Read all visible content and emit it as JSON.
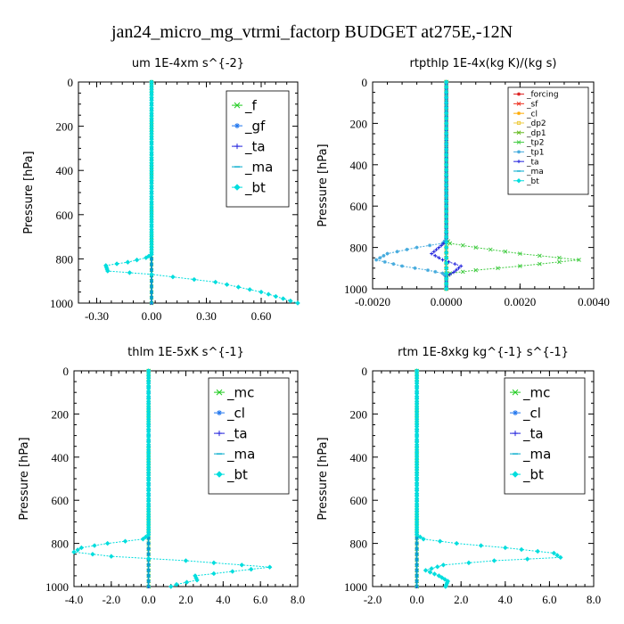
{
  "figure": {
    "title": "jan24_micro_mg_vtrmi_factorp  BUDGET at275E,-12N"
  },
  "chart_data": [
    {
      "type": "line",
      "title": "um   1E-4xm s^{-2}",
      "ylabel": "Pressure [hPa]",
      "xlim": [
        -0.4,
        0.8
      ],
      "ylim": [
        1000,
        0
      ],
      "xticks": [
        -0.3,
        0.0,
        0.3,
        0.6
      ],
      "xtick_labels": [
        "-0.30",
        "0.00",
        "0.30",
        "0.60"
      ],
      "yticks": [
        0,
        200,
        400,
        600,
        800,
        1000
      ],
      "ytick_labels": [
        "0",
        "200",
        "400",
        "600",
        "800",
        "1000"
      ],
      "legend": "top-right",
      "series": [
        {
          "name": "_f",
          "color": "#22cc22",
          "marker": "x",
          "x": [
            0,
            0,
            0,
            0,
            0,
            0,
            0,
            0,
            0,
            0,
            0
          ],
          "y": [
            0,
            100,
            200,
            300,
            400,
            500,
            600,
            700,
            800,
            900,
            1000
          ]
        },
        {
          "name": "_gf",
          "color": "#2277ee",
          "marker": "star",
          "x": [
            0,
            0,
            0,
            0,
            0,
            0,
            0,
            0,
            0,
            0,
            0
          ],
          "y": [
            0,
            100,
            200,
            300,
            400,
            500,
            600,
            700,
            800,
            900,
            1000
          ]
        },
        {
          "name": "_ta",
          "color": "#2222dd",
          "marker": "plus",
          "x": [
            0,
            0,
            0,
            0,
            0,
            0,
            0,
            0,
            0,
            0,
            0
          ],
          "y": [
            0,
            100,
            200,
            300,
            400,
            500,
            600,
            700,
            800,
            900,
            1000
          ]
        },
        {
          "name": "_ma",
          "color": "#00aacc",
          "marker": "dash",
          "x": [
            0,
            0,
            0,
            0,
            0,
            0,
            0,
            0,
            0,
            0,
            0
          ],
          "y": [
            0,
            100,
            200,
            300,
            400,
            500,
            600,
            700,
            800,
            900,
            1000
          ]
        },
        {
          "name": "_bt",
          "color": "#00dddd",
          "marker": "diamond",
          "x": [
            0.0,
            0.0,
            0.0,
            0.0,
            0.0,
            0.0,
            0.0,
            -0.03,
            -0.13,
            -0.25,
            -0.24,
            0.0,
            0.35,
            0.6,
            0.8
          ],
          "y": [
            0,
            200,
            400,
            600,
            700,
            760,
            780,
            795,
            815,
            830,
            855,
            870,
            905,
            950,
            1000
          ]
        }
      ]
    },
    {
      "type": "line",
      "title": "rtpthlp   1E-4x(kg K)/(kg s)",
      "ylabel": "Pressure [hPa]",
      "xlim": [
        -0.002,
        0.004
      ],
      "ylim": [
        1000,
        0
      ],
      "xticks": [
        -0.002,
        0.0,
        0.002,
        0.004
      ],
      "xtick_labels": [
        "-0.0020",
        "0.0000",
        "0.0020",
        "0.0040"
      ],
      "yticks": [
        0,
        200,
        400,
        600,
        800,
        1000
      ],
      "ytick_labels": [
        "0",
        "200",
        "400",
        "600",
        "800",
        "1000"
      ],
      "legend": "top-right",
      "series": [
        {
          "name": "_forcing",
          "color": "#dd2222",
          "marker": "star",
          "x": [
            0,
            0,
            0,
            0,
            0,
            0,
            0,
            0,
            0,
            0,
            0
          ],
          "y": [
            0,
            100,
            200,
            300,
            400,
            500,
            600,
            700,
            800,
            900,
            1000
          ]
        },
        {
          "name": "_sf",
          "color": "#ee3322",
          "marker": "x",
          "x": [
            0,
            0,
            0,
            0,
            0,
            0,
            0,
            0,
            0,
            0,
            0
          ],
          "y": [
            0,
            100,
            200,
            300,
            400,
            500,
            600,
            700,
            800,
            900,
            1000
          ]
        },
        {
          "name": "_cl",
          "color": "#ffaa00",
          "marker": "star",
          "x": [
            0,
            0,
            0,
            0,
            0,
            0,
            0,
            0,
            0,
            0,
            0
          ],
          "y": [
            0,
            100,
            200,
            300,
            400,
            500,
            600,
            700,
            800,
            900,
            1000
          ]
        },
        {
          "name": "_dp2",
          "color": "#eecc44",
          "marker": "square",
          "x": [
            0,
            0,
            0,
            0,
            0,
            0,
            0,
            0,
            0,
            0,
            0
          ],
          "y": [
            0,
            100,
            200,
            300,
            400,
            500,
            600,
            700,
            800,
            900,
            1000
          ]
        },
        {
          "name": "_dp1",
          "color": "#66bb22",
          "marker": "x",
          "x": [
            0,
            0,
            0,
            0,
            0,
            0,
            0,
            0,
            0,
            0,
            0
          ],
          "y": [
            0,
            100,
            200,
            300,
            400,
            500,
            600,
            700,
            800,
            900,
            1000
          ]
        },
        {
          "name": "_tp2",
          "color": "#44cc44",
          "marker": "x",
          "x": [
            0.0,
            0.0,
            0.0,
            0.0001,
            0.0008,
            0.002,
            0.0036,
            0.002,
            0.0008,
            0.0001,
            0.0,
            0.0
          ],
          "y": [
            0,
            400,
            760,
            780,
            800,
            830,
            860,
            890,
            910,
            925,
            940,
            1000
          ]
        },
        {
          "name": "_tp1",
          "color": "#44aadd",
          "marker": "star",
          "x": [
            0.0,
            0.0,
            0.0,
            -0.0001,
            -0.0008,
            -0.0016,
            -0.0019,
            -0.0012,
            -0.0005,
            -0.0001,
            0.0,
            0.0
          ],
          "y": [
            0,
            400,
            760,
            780,
            800,
            830,
            860,
            890,
            910,
            925,
            940,
            1000
          ]
        },
        {
          "name": "_ta",
          "color": "#2222dd",
          "marker": "plus",
          "x": [
            0.0,
            0.0,
            0.0,
            -0.0002,
            -0.0004,
            -0.0001,
            0.0004,
            0.0002,
            0.0,
            0.0
          ],
          "y": [
            0,
            400,
            770,
            800,
            830,
            860,
            890,
            920,
            940,
            1000
          ]
        },
        {
          "name": "_ma",
          "color": "#00aacc",
          "marker": "dash",
          "x": [
            0,
            0,
            0,
            0,
            0,
            0,
            0,
            0,
            0,
            0,
            0
          ],
          "y": [
            0,
            100,
            200,
            300,
            400,
            500,
            600,
            700,
            800,
            900,
            1000
          ]
        },
        {
          "name": "_bt",
          "color": "#00dddd",
          "marker": "diamond",
          "x": [
            0,
            0,
            0,
            0,
            0,
            0,
            0,
            0,
            0,
            0,
            0
          ],
          "y": [
            0,
            100,
            200,
            300,
            400,
            500,
            600,
            700,
            800,
            900,
            1000
          ]
        }
      ]
    },
    {
      "type": "line",
      "title": "thlm   1E-5xK s^{-1}",
      "ylabel": "Pressure [hPa]",
      "xlim": [
        -4.0,
        8.0
      ],
      "ylim": [
        1000,
        0
      ],
      "xticks": [
        -4,
        -2,
        0,
        2,
        4,
        6,
        8
      ],
      "xtick_labels": [
        "-4.0",
        "-2.0",
        "0.0",
        "2.0",
        "4.0",
        "6.0",
        "8.0"
      ],
      "yticks": [
        0,
        200,
        400,
        600,
        800,
        1000
      ],
      "ytick_labels": [
        "0",
        "200",
        "400",
        "600",
        "800",
        "1000"
      ],
      "legend": "top-right",
      "series": [
        {
          "name": "_mc",
          "color": "#22cc22",
          "marker": "x",
          "x": [
            0,
            0,
            0,
            0,
            0,
            0,
            0,
            0,
            0,
            0,
            0
          ],
          "y": [
            0,
            100,
            200,
            300,
            400,
            500,
            600,
            700,
            800,
            900,
            1000
          ]
        },
        {
          "name": "_cl",
          "color": "#2277ee",
          "marker": "star",
          "x": [
            0,
            0,
            0,
            0,
            0,
            0,
            0,
            0,
            0,
            0,
            0
          ],
          "y": [
            0,
            100,
            200,
            300,
            400,
            500,
            600,
            700,
            800,
            900,
            1000
          ]
        },
        {
          "name": "_ta",
          "color": "#2222dd",
          "marker": "plus",
          "x": [
            0,
            0,
            0,
            0,
            0,
            0,
            0,
            0,
            0,
            0,
            0
          ],
          "y": [
            0,
            100,
            200,
            300,
            400,
            500,
            600,
            700,
            800,
            900,
            1000
          ]
        },
        {
          "name": "_ma",
          "color": "#00aacc",
          "marker": "dash",
          "x": [
            0,
            0,
            0,
            0,
            0,
            0,
            0,
            0,
            0,
            0,
            0
          ],
          "y": [
            0,
            100,
            200,
            300,
            400,
            500,
            600,
            700,
            800,
            900,
            1000
          ]
        },
        {
          "name": "_bt",
          "color": "#00dddd",
          "marker": "diamond",
          "x": [
            0.0,
            0.0,
            0.0,
            0.0,
            -0.3,
            -2.2,
            -3.6,
            -4.0,
            -2.0,
            2.0,
            6.5,
            4.5,
            2.5,
            2.6,
            1.5,
            1.2
          ],
          "y": [
            0,
            400,
            700,
            760,
            780,
            800,
            820,
            840,
            860,
            880,
            910,
            930,
            950,
            970,
            990,
            1000
          ]
        }
      ]
    },
    {
      "type": "line",
      "title": "rtm   1E-8xkg kg^{-1} s^{-1}",
      "ylabel": "Pressure [hPa]",
      "xlim": [
        -2.0,
        8.0
      ],
      "ylim": [
        1000,
        0
      ],
      "xticks": [
        -2,
        0,
        2,
        4,
        6,
        8
      ],
      "xtick_labels": [
        "-2.0",
        "0.0",
        "2.0",
        "4.0",
        "6.0",
        "8.0"
      ],
      "yticks": [
        0,
        200,
        400,
        600,
        800,
        1000
      ],
      "ytick_labels": [
        "0",
        "200",
        "400",
        "600",
        "800",
        "1000"
      ],
      "legend": "top-right",
      "series": [
        {
          "name": "_mc",
          "color": "#22cc22",
          "marker": "x",
          "x": [
            0,
            0,
            0,
            0,
            0,
            0,
            0,
            0,
            0,
            0,
            0
          ],
          "y": [
            0,
            100,
            200,
            300,
            400,
            500,
            600,
            700,
            800,
            900,
            1000
          ]
        },
        {
          "name": "_cl",
          "color": "#2277ee",
          "marker": "star",
          "x": [
            0,
            0,
            0,
            0,
            0,
            0,
            0,
            0,
            0,
            0,
            0
          ],
          "y": [
            0,
            100,
            200,
            300,
            400,
            500,
            600,
            700,
            800,
            900,
            1000
          ]
        },
        {
          "name": "_ta",
          "color": "#2222dd",
          "marker": "plus",
          "x": [
            0,
            0,
            0,
            0,
            0,
            0,
            0,
            0,
            0,
            0,
            0
          ],
          "y": [
            0,
            100,
            200,
            300,
            400,
            500,
            600,
            700,
            800,
            900,
            1000
          ]
        },
        {
          "name": "_ma",
          "color": "#00aacc",
          "marker": "dash",
          "x": [
            0,
            0,
            0,
            0,
            0,
            0,
            0,
            0,
            0,
            0,
            0
          ],
          "y": [
            0,
            100,
            200,
            300,
            400,
            500,
            600,
            700,
            800,
            900,
            1000
          ]
        },
        {
          "name": "_bt",
          "color": "#00dddd",
          "marker": "diamond",
          "x": [
            0.0,
            0.0,
            0.0,
            0.0,
            0.3,
            1.8,
            4.0,
            6.2,
            6.5,
            3.5,
            1.2,
            0.4,
            1.0,
            1.4,
            1.3
          ],
          "y": [
            0,
            400,
            700,
            760,
            780,
            800,
            820,
            845,
            865,
            880,
            900,
            925,
            950,
            975,
            1000
          ]
        }
      ]
    }
  ]
}
